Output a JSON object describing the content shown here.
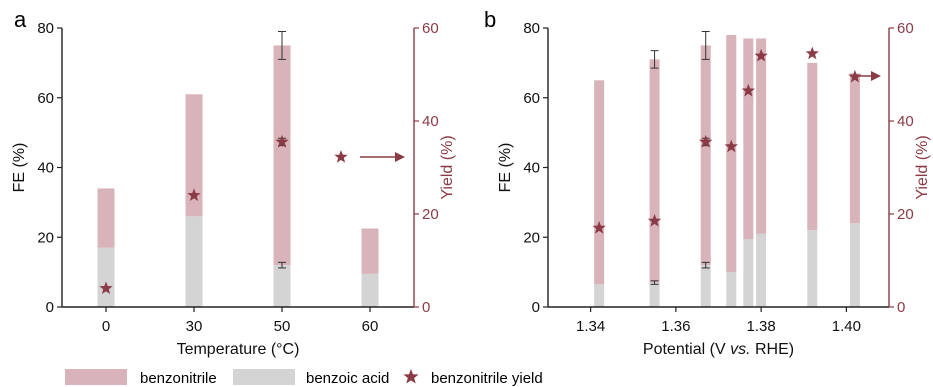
{
  "colors": {
    "benzonitrile": "#d8b3b9",
    "benzoic_acid": "#d4d4d4",
    "yield_star": "#8b3b46",
    "right_axis": "#8b3b46",
    "axis": "#222222"
  },
  "legend": {
    "items": [
      {
        "label": "benzonitrile",
        "key": "benzonitrile",
        "marker": "rect"
      },
      {
        "label": "benzoic acid",
        "key": "benzoic_acid",
        "marker": "rect"
      },
      {
        "label": "benzonitrile yield",
        "key": "yield_star",
        "marker": "star"
      }
    ]
  },
  "chart_data": [
    {
      "panel_label": "a",
      "type": "bar",
      "stacked": true,
      "xlabel": "Temperature (°C)",
      "ylabel": "FE (%)",
      "y2label": "Yield (%)",
      "categories": [
        "0",
        "30",
        "50",
        "60"
      ],
      "ylim": [
        0,
        80
      ],
      "yticks": [
        0,
        20,
        40,
        60,
        80
      ],
      "y2lim": [
        0,
        60
      ],
      "y2ticks": [
        0,
        20,
        40,
        60
      ],
      "series": [
        {
          "name": "benzoic acid",
          "key": "benzoic_acid",
          "values": [
            17,
            26,
            12,
            9.5
          ],
          "errors": [
            null,
            null,
            0.8,
            null
          ]
        },
        {
          "name": "benzonitrile",
          "key": "benzonitrile",
          "values": [
            17,
            35,
            63,
            13
          ],
          "errors": [
            null,
            null,
            4,
            null
          ]
        }
      ],
      "yield": {
        "name": "benzonitrile yield",
        "categories": [
          "0",
          "30",
          "50"
        ],
        "values": [
          4,
          24,
          35.5
        ],
        "errors": [
          null,
          null,
          0.8
        ]
      },
      "arrow_direction": "right"
    },
    {
      "panel_label": "b",
      "type": "bar",
      "stacked": true,
      "xlabel": "Potential (V vs. RHE)",
      "xlabel_parts": [
        "Potential (V ",
        "vs.",
        " RHE)"
      ],
      "ylabel": "FE (%)",
      "y2label": "Yield (%)",
      "xlim": [
        1.33,
        1.41
      ],
      "xticks": [
        1.34,
        1.36,
        1.38,
        1.4
      ],
      "xtick_labels": [
        "1.34",
        "1.36",
        "1.38",
        "1.40"
      ],
      "ylim": [
        0,
        80
      ],
      "yticks": [
        0,
        20,
        40,
        60,
        80
      ],
      "y2lim": [
        0,
        60
      ],
      "y2ticks": [
        0,
        20,
        40,
        60
      ],
      "x": [
        1.342,
        1.355,
        1.367,
        1.373,
        1.377,
        1.38,
        1.392,
        1.402
      ],
      "series": [
        {
          "name": "benzoic acid",
          "key": "benzoic_acid",
          "values": [
            6.5,
            7,
            12,
            10,
            19.5,
            21,
            22,
            24
          ],
          "errors": [
            null,
            0.5,
            0.8,
            null,
            null,
            null,
            null,
            null
          ]
        },
        {
          "name": "benzonitrile",
          "key": "benzonitrile",
          "values": [
            58.5,
            64,
            63,
            68,
            57.5,
            56,
            48,
            43
          ],
          "errors": [
            null,
            2.5,
            4,
            null,
            null,
            null,
            null,
            null
          ]
        }
      ],
      "yield": {
        "name": "benzonitrile yield",
        "x": [
          1.342,
          1.355,
          1.367,
          1.373,
          1.377,
          1.38,
          1.392,
          1.402
        ],
        "values": [
          17,
          18.5,
          35.5,
          34.5,
          46.5,
          54,
          54.5,
          49.5
        ],
        "errors": [
          null,
          null,
          0.8,
          null,
          null,
          null,
          null,
          null
        ]
      },
      "arrow_direction": "right"
    }
  ]
}
